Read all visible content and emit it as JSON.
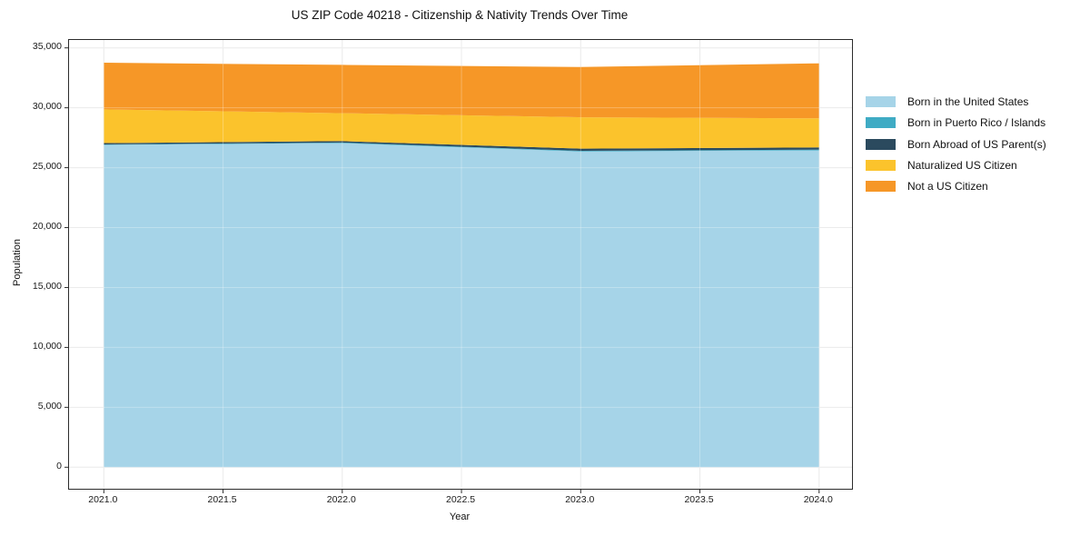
{
  "figure": {
    "title": "US ZIP Code 40218 - Citizenship & Nativity Trends Over Time",
    "xlabel": "Year",
    "ylabel": "Population"
  },
  "chart_data": {
    "type": "area",
    "stacked": true,
    "title": "US ZIP Code 40218 - Citizenship & Nativity Trends Over Time",
    "xlabel": "Year",
    "ylabel": "Population",
    "x": [
      2021,
      2022,
      2023,
      2024
    ],
    "series": [
      {
        "name": "Born in the United States",
        "color": "#a6d4e8",
        "values": [
          26900,
          27050,
          26350,
          26450
        ]
      },
      {
        "name": "Born in Puerto Rico / Islands",
        "color": "#3fabc4",
        "values": [
          40,
          50,
          60,
          60
        ]
      },
      {
        "name": "Born Abroad of US Parent(s)",
        "color": "#2b4a5e",
        "values": [
          110,
          120,
          180,
          180
        ]
      },
      {
        "name": "Naturalized US Citizen",
        "color": "#fbc32c",
        "values": [
          2820,
          2330,
          2620,
          2430
        ]
      },
      {
        "name": "Not a US Citizen",
        "color": "#f69727",
        "values": [
          3890,
          4030,
          4190,
          4590
        ]
      }
    ],
    "stack_totals": [
      33760,
      33580,
      33400,
      33710
    ],
    "xticks": [
      2021.0,
      2021.5,
      2022.0,
      2022.5,
      2023.0,
      2023.5,
      2024.0
    ],
    "xtick_labels": [
      "2021.0",
      "2021.5",
      "2022.0",
      "2022.5",
      "2023.0",
      "2023.5",
      "2024.0"
    ],
    "yticks": [
      0,
      5000,
      10000,
      15000,
      20000,
      25000,
      30000,
      35000
    ],
    "ytick_labels": [
      "0",
      "5,000",
      "10,000",
      "15,000",
      "20,000",
      "25,000",
      "30,000",
      "35,000"
    ],
    "xlim": [
      2020.854,
      2024.138
    ],
    "ylim": [
      -1797,
      35660
    ],
    "grid": true,
    "grid_color": "#e4e4e4",
    "legend_position": "right-outside"
  }
}
